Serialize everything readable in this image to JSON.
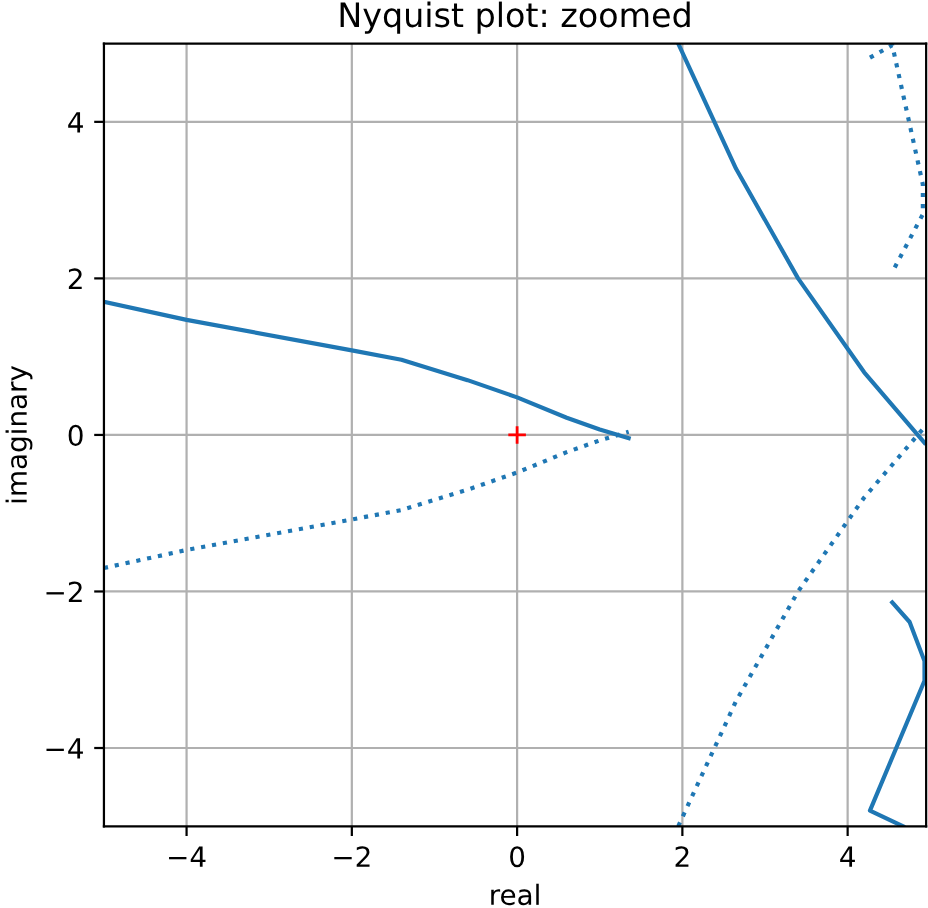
{
  "chart_data": {
    "type": "line",
    "title": "Nyquist plot: zoomed",
    "xlabel": "real",
    "ylabel": "imaginary",
    "xlim": [
      -5,
      4.95
    ],
    "ylim": [
      -5,
      5
    ],
    "xticks": [
      {
        "value": -4,
        "label": "−4"
      },
      {
        "value": -2,
        "label": "−2"
      },
      0,
      2,
      4
    ],
    "yticks": [
      {
        "value": -4,
        "label": "−4"
      },
      {
        "value": -2,
        "label": "−2"
      },
      0,
      2,
      4
    ],
    "grid": true,
    "series": [
      {
        "color": "#1f77b4",
        "line_style": "solid",
        "x": [
          -5,
          -4,
          -2,
          -1.4,
          -0.6,
          0,
          0.6,
          1.0,
          1.35
        ],
        "values": [
          1.7,
          1.47,
          1.08,
          0.96,
          0.7,
          0.48,
          0.22,
          0.07,
          -0.04
        ]
      },
      {
        "color": "#1f77b4",
        "line_style": "solid",
        "x": [
          1.95,
          2.65,
          3.4,
          4.2,
          4.93
        ],
        "values": [
          5,
          3.4,
          2.0,
          0.8,
          -0.1
        ]
      },
      {
        "color": "#1f77b4",
        "line_style": "solid",
        "x": [
          4.54,
          4.75,
          4.93,
          4.93,
          4.27,
          4.67
        ],
        "values": [
          -2.14,
          -2.39,
          -2.89,
          -3.14,
          -4.8,
          -5.0
        ]
      },
      {
        "color": "#1f77b4",
        "line_style": "dotted",
        "x": [
          -5,
          -4,
          -2,
          -1.4,
          -0.6,
          0,
          0.6,
          1.0,
          1.35
        ],
        "values": [
          -1.7,
          -1.47,
          -1.08,
          -0.96,
          -0.7,
          -0.48,
          -0.22,
          -0.07,
          0.04
        ]
      },
      {
        "color": "#1f77b4",
        "line_style": "dotted",
        "x": [
          1.95,
          2.65,
          3.4,
          4.2,
          4.93
        ],
        "values": [
          -5,
          -3.4,
          -2.0,
          -0.8,
          0.1
        ]
      },
      {
        "color": "#1f77b4",
        "line_style": "dotted",
        "x": [
          4.57,
          4.91,
          4.91,
          4.54,
          4.27
        ],
        "values": [
          2.14,
          2.82,
          3.2,
          4.98,
          4.82
        ]
      },
      {
        "type": "scatter",
        "marker": "cross",
        "color": "#ff0000",
        "x": [
          0
        ],
        "values": [
          0
        ]
      }
    ]
  }
}
